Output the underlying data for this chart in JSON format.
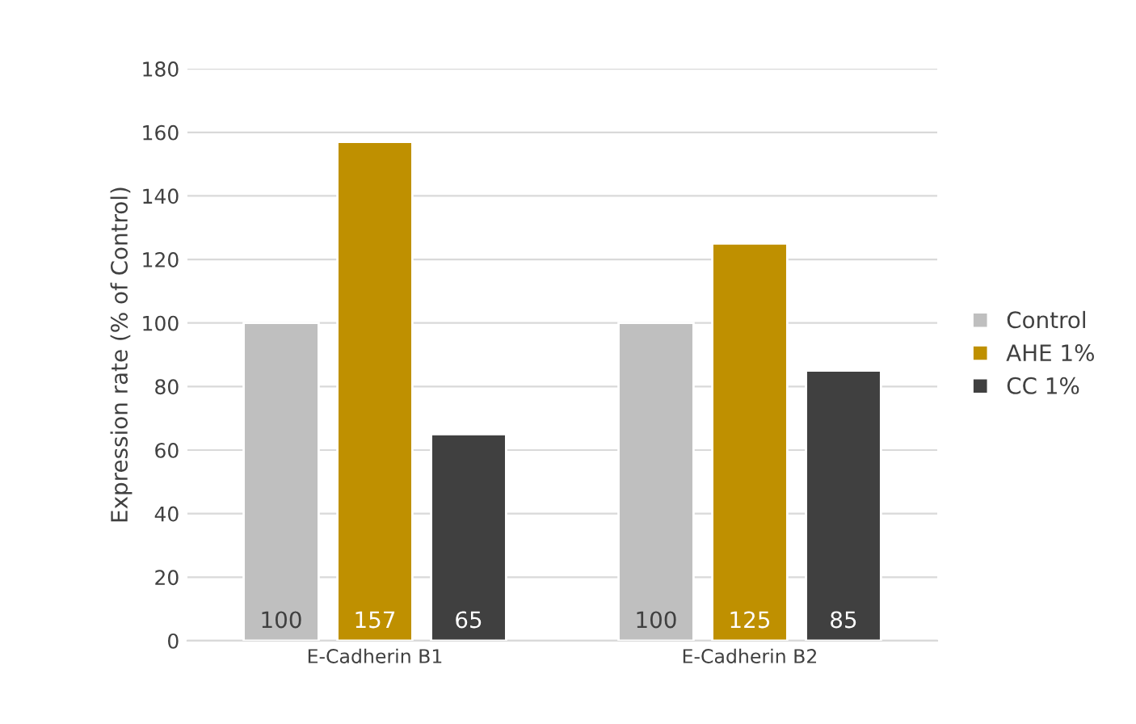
{
  "chart_data": {
    "type": "bar",
    "ylabel": "Expression rate (% of Control)",
    "categories": [
      "E-Cadherin B1",
      "E-Cadherin B2"
    ],
    "series": [
      {
        "name": "Control",
        "color": "#bfbfbf",
        "values": [
          100,
          100
        ]
      },
      {
        "name": "AHE 1%",
        "color": "#bf9000",
        "values": [
          157,
          125
        ]
      },
      {
        "name": "CC 1%",
        "color": "#404040",
        "values": [
          65,
          85
        ]
      }
    ],
    "ylim": [
      0,
      180
    ],
    "yticks": [
      0,
      20,
      40,
      60,
      80,
      100,
      120,
      140,
      160,
      180
    ],
    "grid": "y",
    "legend": "right",
    "data_labels": true
  }
}
